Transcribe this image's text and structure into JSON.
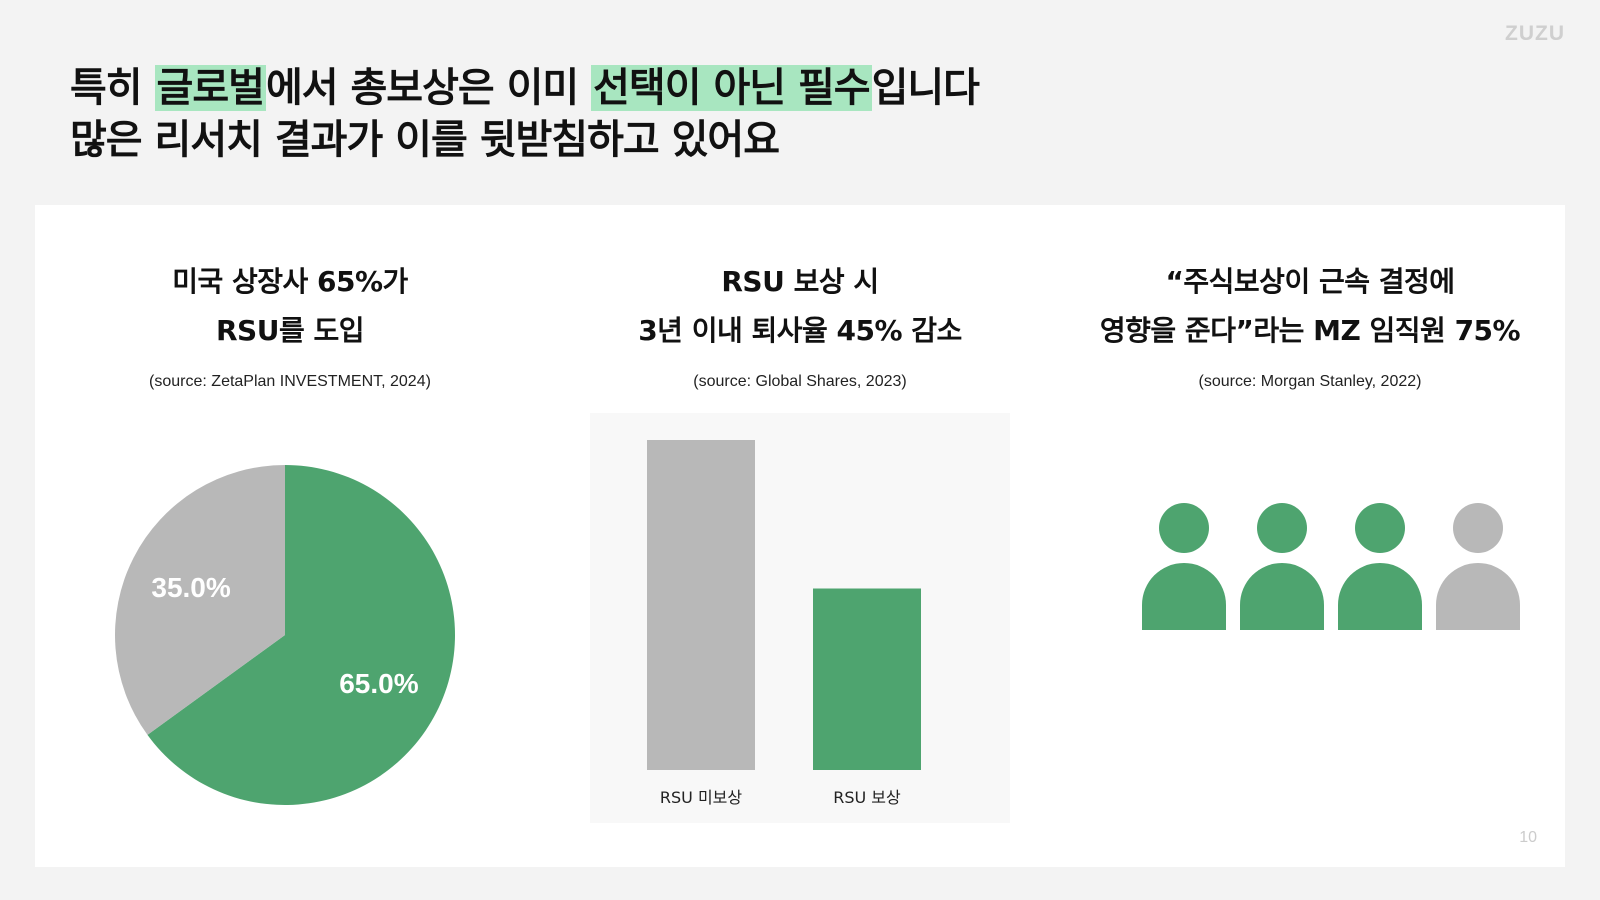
{
  "brand": {
    "logo_text": "ZUZU"
  },
  "headline": {
    "line1": [
      {
        "text": "특히 ",
        "highlight": false
      },
      {
        "text": "글로벌",
        "highlight": true
      },
      {
        "text": "에서 총보상은 이미 ",
        "highlight": false
      },
      {
        "text": "선택이 아닌 필수",
        "highlight": true
      },
      {
        "text": "입니다",
        "highlight": false
      }
    ],
    "line2": "많은 리서치 결과가 이를 뒷받침하고 있어요"
  },
  "columns": [
    {
      "title_line1": "미국 상장사 65%가",
      "title_line2": "RSU를 도입",
      "source": "(source: ZetaPlan INVESTMENT, 2024)"
    },
    {
      "title_line1": "RSU 보상 시",
      "title_line2": "3년 이내 퇴사율 45% 감소",
      "source": "(source: Global Shares, 2023)"
    },
    {
      "title_line1": "“주식보상이 근속 결정에",
      "title_line2": "영향을 준다”라는 MZ 임직원 75%",
      "source": "(source: Morgan Stanley, 2022)"
    }
  ],
  "chart_data": [
    {
      "type": "pie",
      "categories": [
        "",
        ""
      ],
      "values": [
        65.0,
        35.0
      ],
      "labels": [
        "65.0%",
        "35.0%"
      ],
      "colors": [
        "#4ea46f",
        "#b8b8b8"
      ]
    },
    {
      "type": "bar",
      "categories": [
        "RSU 미보상",
        "RSU 보상"
      ],
      "values": [
        100,
        55
      ],
      "ylim": [
        0,
        100
      ],
      "colors": [
        "#b8b8b8",
        "#4ea46f"
      ]
    },
    {
      "type": "pictogram",
      "values": [
        1,
        1,
        1,
        0
      ],
      "share": 0.75,
      "colors": {
        "on": "#4ea46f",
        "off": "#b8b8b8"
      }
    }
  ],
  "page_number": "10"
}
